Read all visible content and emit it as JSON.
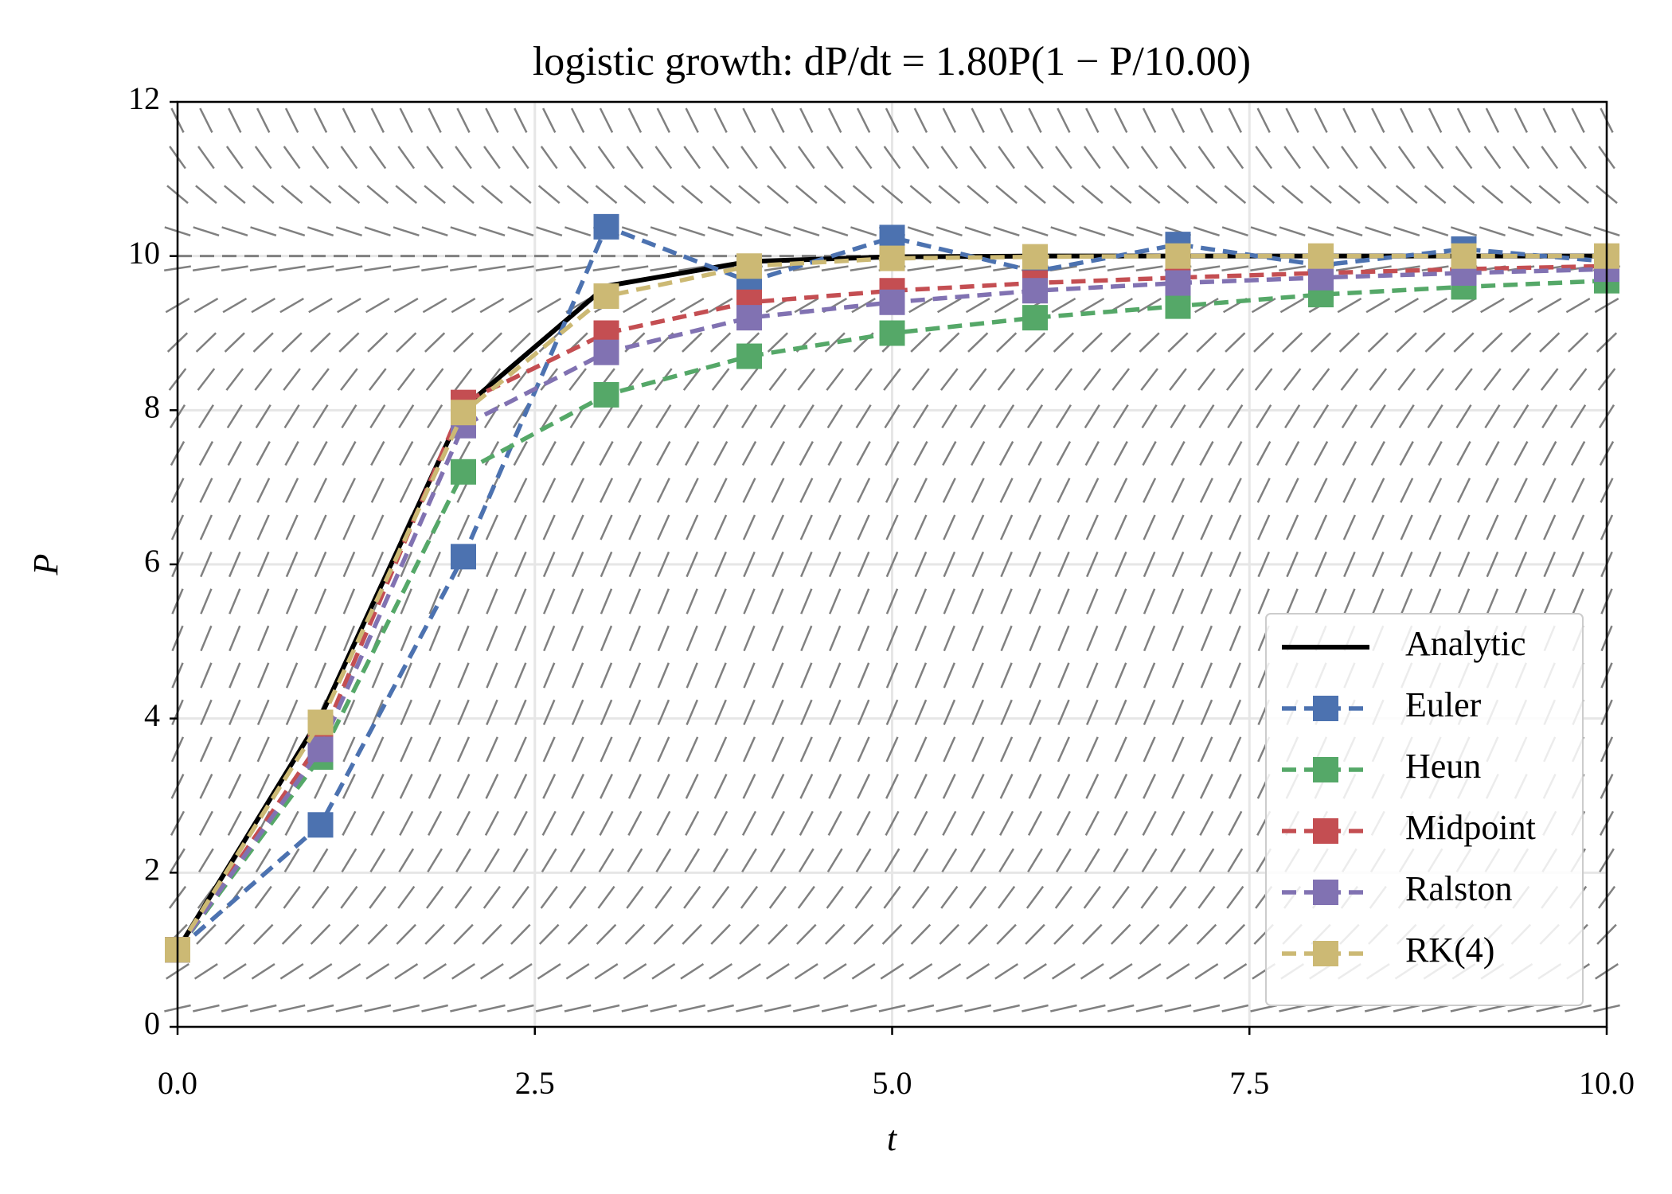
{
  "chart_data": {
    "type": "line",
    "title": "logistic growth: dP/dt = 1.80P(1 − P/10.00)",
    "growth_rate": 1.8,
    "capacity": 10,
    "xlabel": "t",
    "ylabel": "P",
    "x": [
      0,
      1,
      2,
      3,
      4,
      5,
      6,
      7,
      8,
      9,
      10
    ],
    "series": [
      {
        "name": "Analytic",
        "color": "#000000",
        "style": "solid",
        "markers": false,
        "values": [
          1,
          4.02,
          8.03,
          9.61,
          9.93,
          9.99,
          10,
          10,
          10,
          10,
          10
        ]
      },
      {
        "name": "Euler",
        "color": "#4c72b0",
        "style": "dashed",
        "markers": true,
        "values": [
          1,
          2.62,
          6.1,
          10.38,
          9.67,
          10.24,
          9.8,
          10.15,
          9.88,
          10.09,
          9.93
        ]
      },
      {
        "name": "Heun",
        "color": "#55a868",
        "style": "dashed",
        "markers": true,
        "values": [
          1,
          3.5,
          7.2,
          8.2,
          8.7,
          9.0,
          9.2,
          9.35,
          9.5,
          9.6,
          9.68
        ]
      },
      {
        "name": "Midpoint",
        "color": "#c44e52",
        "style": "dashed",
        "markers": true,
        "values": [
          1,
          3.7,
          8.1,
          9.0,
          9.4,
          9.55,
          9.65,
          9.72,
          9.78,
          9.83,
          9.87
        ]
      },
      {
        "name": "Ralston",
        "color": "#8172b2",
        "style": "dashed",
        "markers": true,
        "values": [
          1,
          3.6,
          7.8,
          8.75,
          9.2,
          9.4,
          9.55,
          9.65,
          9.72,
          9.78,
          9.83
        ]
      },
      {
        "name": "RK(4)",
        "color": "#ccb974",
        "style": "dashed",
        "markers": true,
        "values": [
          1,
          3.95,
          7.97,
          9.48,
          9.87,
          9.97,
          9.99,
          10,
          10,
          10,
          10
        ]
      }
    ],
    "xlim": [
      0,
      10
    ],
    "xticks": [
      {
        "value": 0,
        "label": "0.0"
      },
      2.5,
      {
        "value": 5,
        "label": "5.0"
      },
      7.5,
      {
        "value": 10,
        "label": "10.0"
      }
    ],
    "ylim": [
      0,
      12
    ],
    "yticks": [
      0,
      2,
      4,
      6,
      8,
      10,
      12
    ],
    "grid": true,
    "legend": "lower right"
  }
}
